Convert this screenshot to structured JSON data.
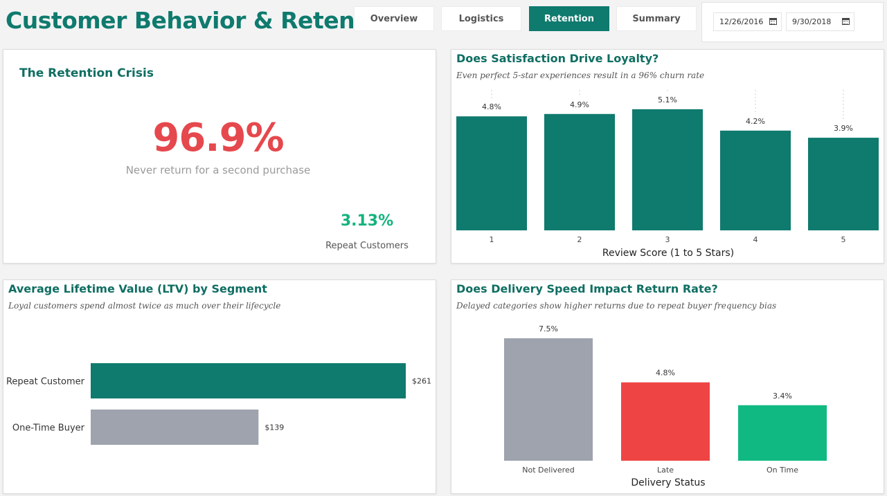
{
  "header": {
    "title": "Customer Behavior & Retention",
    "tabs": [
      {
        "label": "Overview",
        "active": false
      },
      {
        "label": "Logistics",
        "active": false
      },
      {
        "label": "Retention",
        "active": true
      },
      {
        "label": "Summary",
        "active": false
      }
    ],
    "date_start": "12/26/2016",
    "date_end": "9/30/2018"
  },
  "colors": {
    "primary": "#0f7a6e",
    "gray": "#9ea3ad",
    "red": "#ef4444",
    "green": "#10b981",
    "kpi_red": "#e5484d"
  },
  "kpi": {
    "title": "The Retention Crisis",
    "value": "96.9%",
    "description": "Never return for a second purchase",
    "secondary_value": "3.13%",
    "secondary_label": "Repeat Customers"
  },
  "satisfaction": {
    "title": "Does Satisfaction Drive Loyalty?",
    "subtitle": "Even perfect 5-star experiences result in a 96% churn rate"
  },
  "ltv": {
    "title": "Average Lifetime Value (LTV) by Segment",
    "subtitle": "Loyal customers spend almost twice as much over their lifecycle"
  },
  "delivery": {
    "title": "Does Delivery Speed Impact Return Rate?",
    "subtitle": "Delayed categories show higher returns due to repeat buyer frequency bias"
  },
  "chart_data": [
    {
      "type": "bar",
      "categories": [
        "1",
        "2",
        "3",
        "4",
        "5"
      ],
      "values": [
        4.8,
        4.9,
        5.1,
        4.2,
        3.9
      ],
      "labels": [
        "4.8%",
        "4.9%",
        "5.1%",
        "4.2%",
        "3.9%"
      ],
      "xlabel": "Review Score (1 to 5 Stars)",
      "ylim": [
        0,
        6
      ],
      "grid": false
    },
    {
      "type": "bar",
      "orientation": "horizontal",
      "categories": [
        "Repeat Customer",
        "One-Time Buyer"
      ],
      "values": [
        261,
        139
      ],
      "labels": [
        "$261",
        "$139"
      ],
      "xlim": [
        0,
        280
      ]
    },
    {
      "type": "bar",
      "categories": [
        "Not Delivered",
        "Late",
        "On Time"
      ],
      "values": [
        7.5,
        4.8,
        3.4
      ],
      "labels": [
        "7.5%",
        "4.8%",
        "3.4%"
      ],
      "xlabel": "Delivery Status",
      "ylim": [
        0,
        8
      ]
    }
  ]
}
